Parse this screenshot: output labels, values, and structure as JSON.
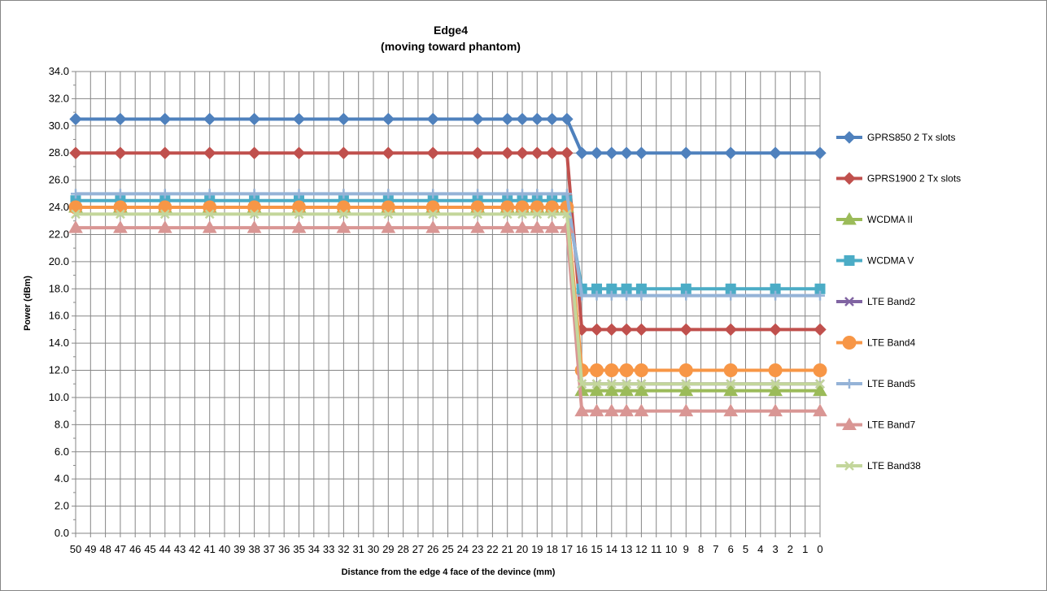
{
  "chart_data": {
    "type": "line",
    "title": "Edge4",
    "subtitle": "(moving toward phantom)",
    "xlabel": "Distance from the edge 4 face of the devince (mm)",
    "ylabel": "Power (dBm)",
    "ylim": [
      0,
      34
    ],
    "ytick_step": 2,
    "ytick_labels": [
      "0.0",
      "2.0",
      "4.0",
      "6.0",
      "8.0",
      "10.0",
      "12.0",
      "14.0",
      "16.0",
      "18.0",
      "20.0",
      "22.0",
      "24.0",
      "26.0",
      "28.0",
      "30.0",
      "32.0",
      "34.0"
    ],
    "x_categories": [
      50,
      49,
      48,
      47,
      46,
      45,
      44,
      43,
      42,
      41,
      40,
      39,
      38,
      37,
      36,
      35,
      34,
      33,
      32,
      31,
      30,
      29,
      28,
      27,
      26,
      25,
      24,
      23,
      22,
      21,
      20,
      19,
      18,
      17,
      16,
      15,
      14,
      13,
      12,
      11,
      10,
      9,
      8,
      7,
      6,
      5,
      4,
      3,
      2,
      1,
      0
    ],
    "x_points": [
      50,
      47,
      44,
      41,
      38,
      35,
      32,
      29,
      26,
      23,
      21,
      20,
      19,
      18,
      17,
      16,
      15,
      14,
      13,
      12,
      9,
      6,
      3,
      0
    ],
    "grid": true,
    "legend_position": "right",
    "series": [
      {
        "name": "GPRS850 2 Tx slots",
        "color": "#4f81bd",
        "marker": "diamond",
        "values": [
          30.5,
          30.5,
          30.5,
          30.5,
          30.5,
          30.5,
          30.5,
          30.5,
          30.5,
          30.5,
          30.5,
          30.5,
          30.5,
          30.5,
          30.5,
          28,
          28,
          28,
          28,
          28,
          28,
          28,
          28,
          28
        ]
      },
      {
        "name": "GPRS1900 2 Tx slots",
        "color": "#c0504d",
        "marker": "diamond",
        "values": [
          28,
          28,
          28,
          28,
          28,
          28,
          28,
          28,
          28,
          28,
          28,
          28,
          28,
          28,
          28,
          15,
          15,
          15,
          15,
          15,
          15,
          15,
          15,
          15
        ]
      },
      {
        "name": "WCDMA II",
        "color": "#9bbb59",
        "marker": "triangle",
        "values": [
          24,
          24,
          24,
          24,
          24,
          24,
          24,
          24,
          24,
          24,
          24,
          24,
          24,
          24,
          24,
          10.5,
          10.5,
          10.5,
          10.5,
          10.5,
          10.5,
          10.5,
          10.5,
          10.5
        ]
      },
      {
        "name": "WCDMA V",
        "color": "#4bacc6",
        "marker": "square",
        "values": [
          24.5,
          24.5,
          24.5,
          24.5,
          24.5,
          24.5,
          24.5,
          24.5,
          24.5,
          24.5,
          24.5,
          24.5,
          24.5,
          24.5,
          24.5,
          18,
          18,
          18,
          18,
          18,
          18,
          18,
          18,
          18
        ]
      },
      {
        "name": "LTE Band2",
        "color": "#8064a2",
        "marker": "x",
        "values": [
          24,
          24,
          24,
          24,
          24,
          24,
          24,
          24,
          24,
          24,
          24,
          24,
          24,
          24,
          24,
          11,
          11,
          11,
          11,
          11,
          11,
          11,
          11,
          11
        ]
      },
      {
        "name": "LTE Band4",
        "color": "#f79646",
        "marker": "circle",
        "values": [
          24,
          24,
          24,
          24,
          24,
          24,
          24,
          24,
          24,
          24,
          24,
          24,
          24,
          24,
          24,
          12,
          12,
          12,
          12,
          12,
          12,
          12,
          12,
          12
        ]
      },
      {
        "name": "LTE Band5",
        "color": "#95b3d7",
        "marker": "plus",
        "values": [
          25,
          25,
          25,
          25,
          25,
          25,
          25,
          25,
          25,
          25,
          25,
          25,
          25,
          25,
          25,
          17.5,
          17.5,
          17.5,
          17.5,
          17.5,
          17.5,
          17.5,
          17.5,
          17.5
        ]
      },
      {
        "name": "LTE Band7",
        "color": "#d99694",
        "marker": "triangle",
        "values": [
          22.5,
          22.5,
          22.5,
          22.5,
          22.5,
          22.5,
          22.5,
          22.5,
          22.5,
          22.5,
          22.5,
          22.5,
          22.5,
          22.5,
          22.5,
          9,
          9,
          9,
          9,
          9,
          9,
          9,
          9,
          9
        ]
      },
      {
        "name": "LTE Band38",
        "color": "#c3d69b",
        "marker": "x",
        "values": [
          23.5,
          23.5,
          23.5,
          23.5,
          23.5,
          23.5,
          23.5,
          23.5,
          23.5,
          23.5,
          23.5,
          23.5,
          23.5,
          23.5,
          23.5,
          11,
          11,
          11,
          11,
          11,
          11,
          11,
          11,
          11
        ]
      }
    ]
  }
}
